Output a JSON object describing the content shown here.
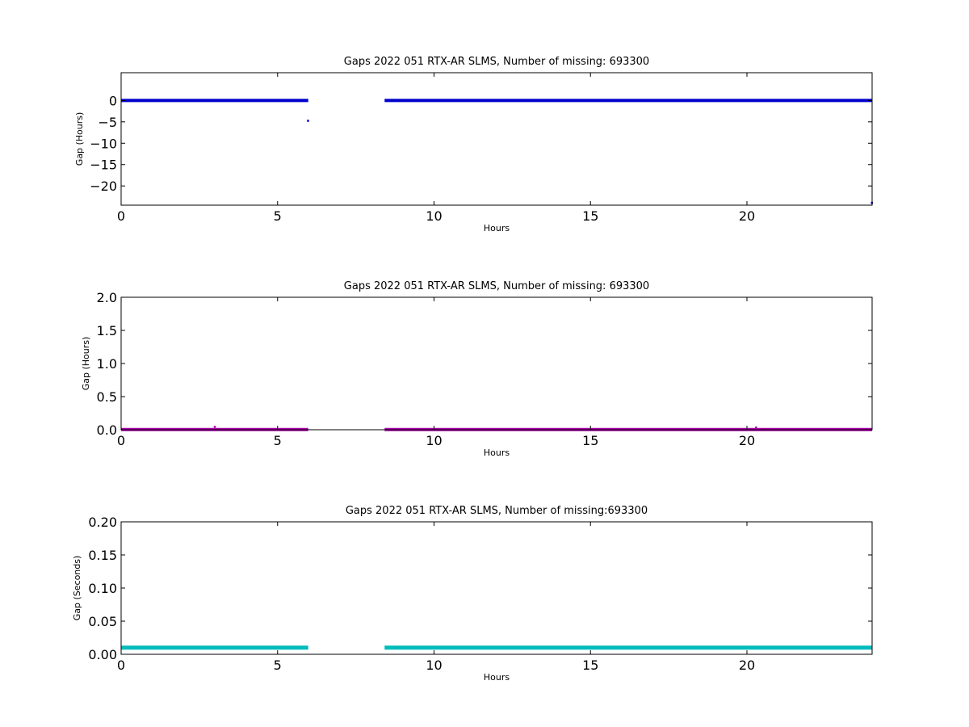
{
  "chart_data": [
    {
      "type": "scatter",
      "title": "Gaps 2022 051 RTX-AR  SLMS, Number of missing: 693300",
      "xlabel": "Hours",
      "ylabel": "Gap (Hours)",
      "xlim": [
        0,
        24
      ],
      "ylim": [
        -24.5,
        6.5
      ],
      "xticks": [
        0,
        5,
        10,
        15,
        20
      ],
      "yticks": [
        0,
        -5,
        -10,
        -15,
        -20
      ],
      "ytick_labels": [
        "0",
        "−5",
        "−10",
        "−15",
        "−20"
      ],
      "color": "#0000cc",
      "series": [
        {
          "segments": [
            {
              "x_start": 0,
              "x_end": 5.98,
              "y": 0
            },
            {
              "x_start": 8.42,
              "x_end": 24,
              "y": 0
            }
          ],
          "points": [
            {
              "x": 5.98,
              "y": -4.8
            },
            {
              "x": 24,
              "y": -24
            }
          ]
        }
      ]
    },
    {
      "type": "scatter",
      "title": "Gaps 2022 051 RTX-AR  SLMS, Number of missing: 693300",
      "xlabel": "Hours",
      "ylabel": "Gap (Hours)",
      "xlim": [
        0,
        24
      ],
      "ylim": [
        0,
        2.0
      ],
      "xticks": [
        0,
        5,
        10,
        15,
        20
      ],
      "yticks": [
        0.0,
        0.5,
        1.0,
        1.5,
        2.0
      ],
      "ytick_labels": [
        "0.0",
        "0.5",
        "1.0",
        "1.5",
        "2.0"
      ],
      "color": "#aa00aa",
      "series": [
        {
          "segments": [
            {
              "x_start": 0,
              "x_end": 5.98,
              "y": 0.003
            },
            {
              "x_start": 8.42,
              "x_end": 24,
              "y": 0.003
            }
          ],
          "points": [
            {
              "x": 3.0,
              "y": 0.04
            },
            {
              "x": 20.3,
              "y": 0.03
            }
          ]
        }
      ]
    },
    {
      "type": "scatter",
      "title": "Gaps 2022 051 RTX-AR  SLMS, Number of missing:693300",
      "xlabel": "Hours",
      "ylabel": "Gap (Seconds)",
      "xlim": [
        0,
        24
      ],
      "ylim": [
        0,
        0.2
      ],
      "xticks": [
        0,
        5,
        10,
        15,
        20
      ],
      "yticks": [
        0.0,
        0.05,
        0.1,
        0.15,
        0.2
      ],
      "ytick_labels": [
        "0.00",
        "0.05",
        "0.10",
        "0.15",
        "0.20"
      ],
      "color": "#00bbbb",
      "series": [
        {
          "segments": [
            {
              "x_start": 0,
              "x_end": 5.98,
              "y": 0.01
            },
            {
              "x_start": 8.42,
              "x_end": 24,
              "y": 0.01
            }
          ],
          "points": []
        }
      ]
    }
  ]
}
